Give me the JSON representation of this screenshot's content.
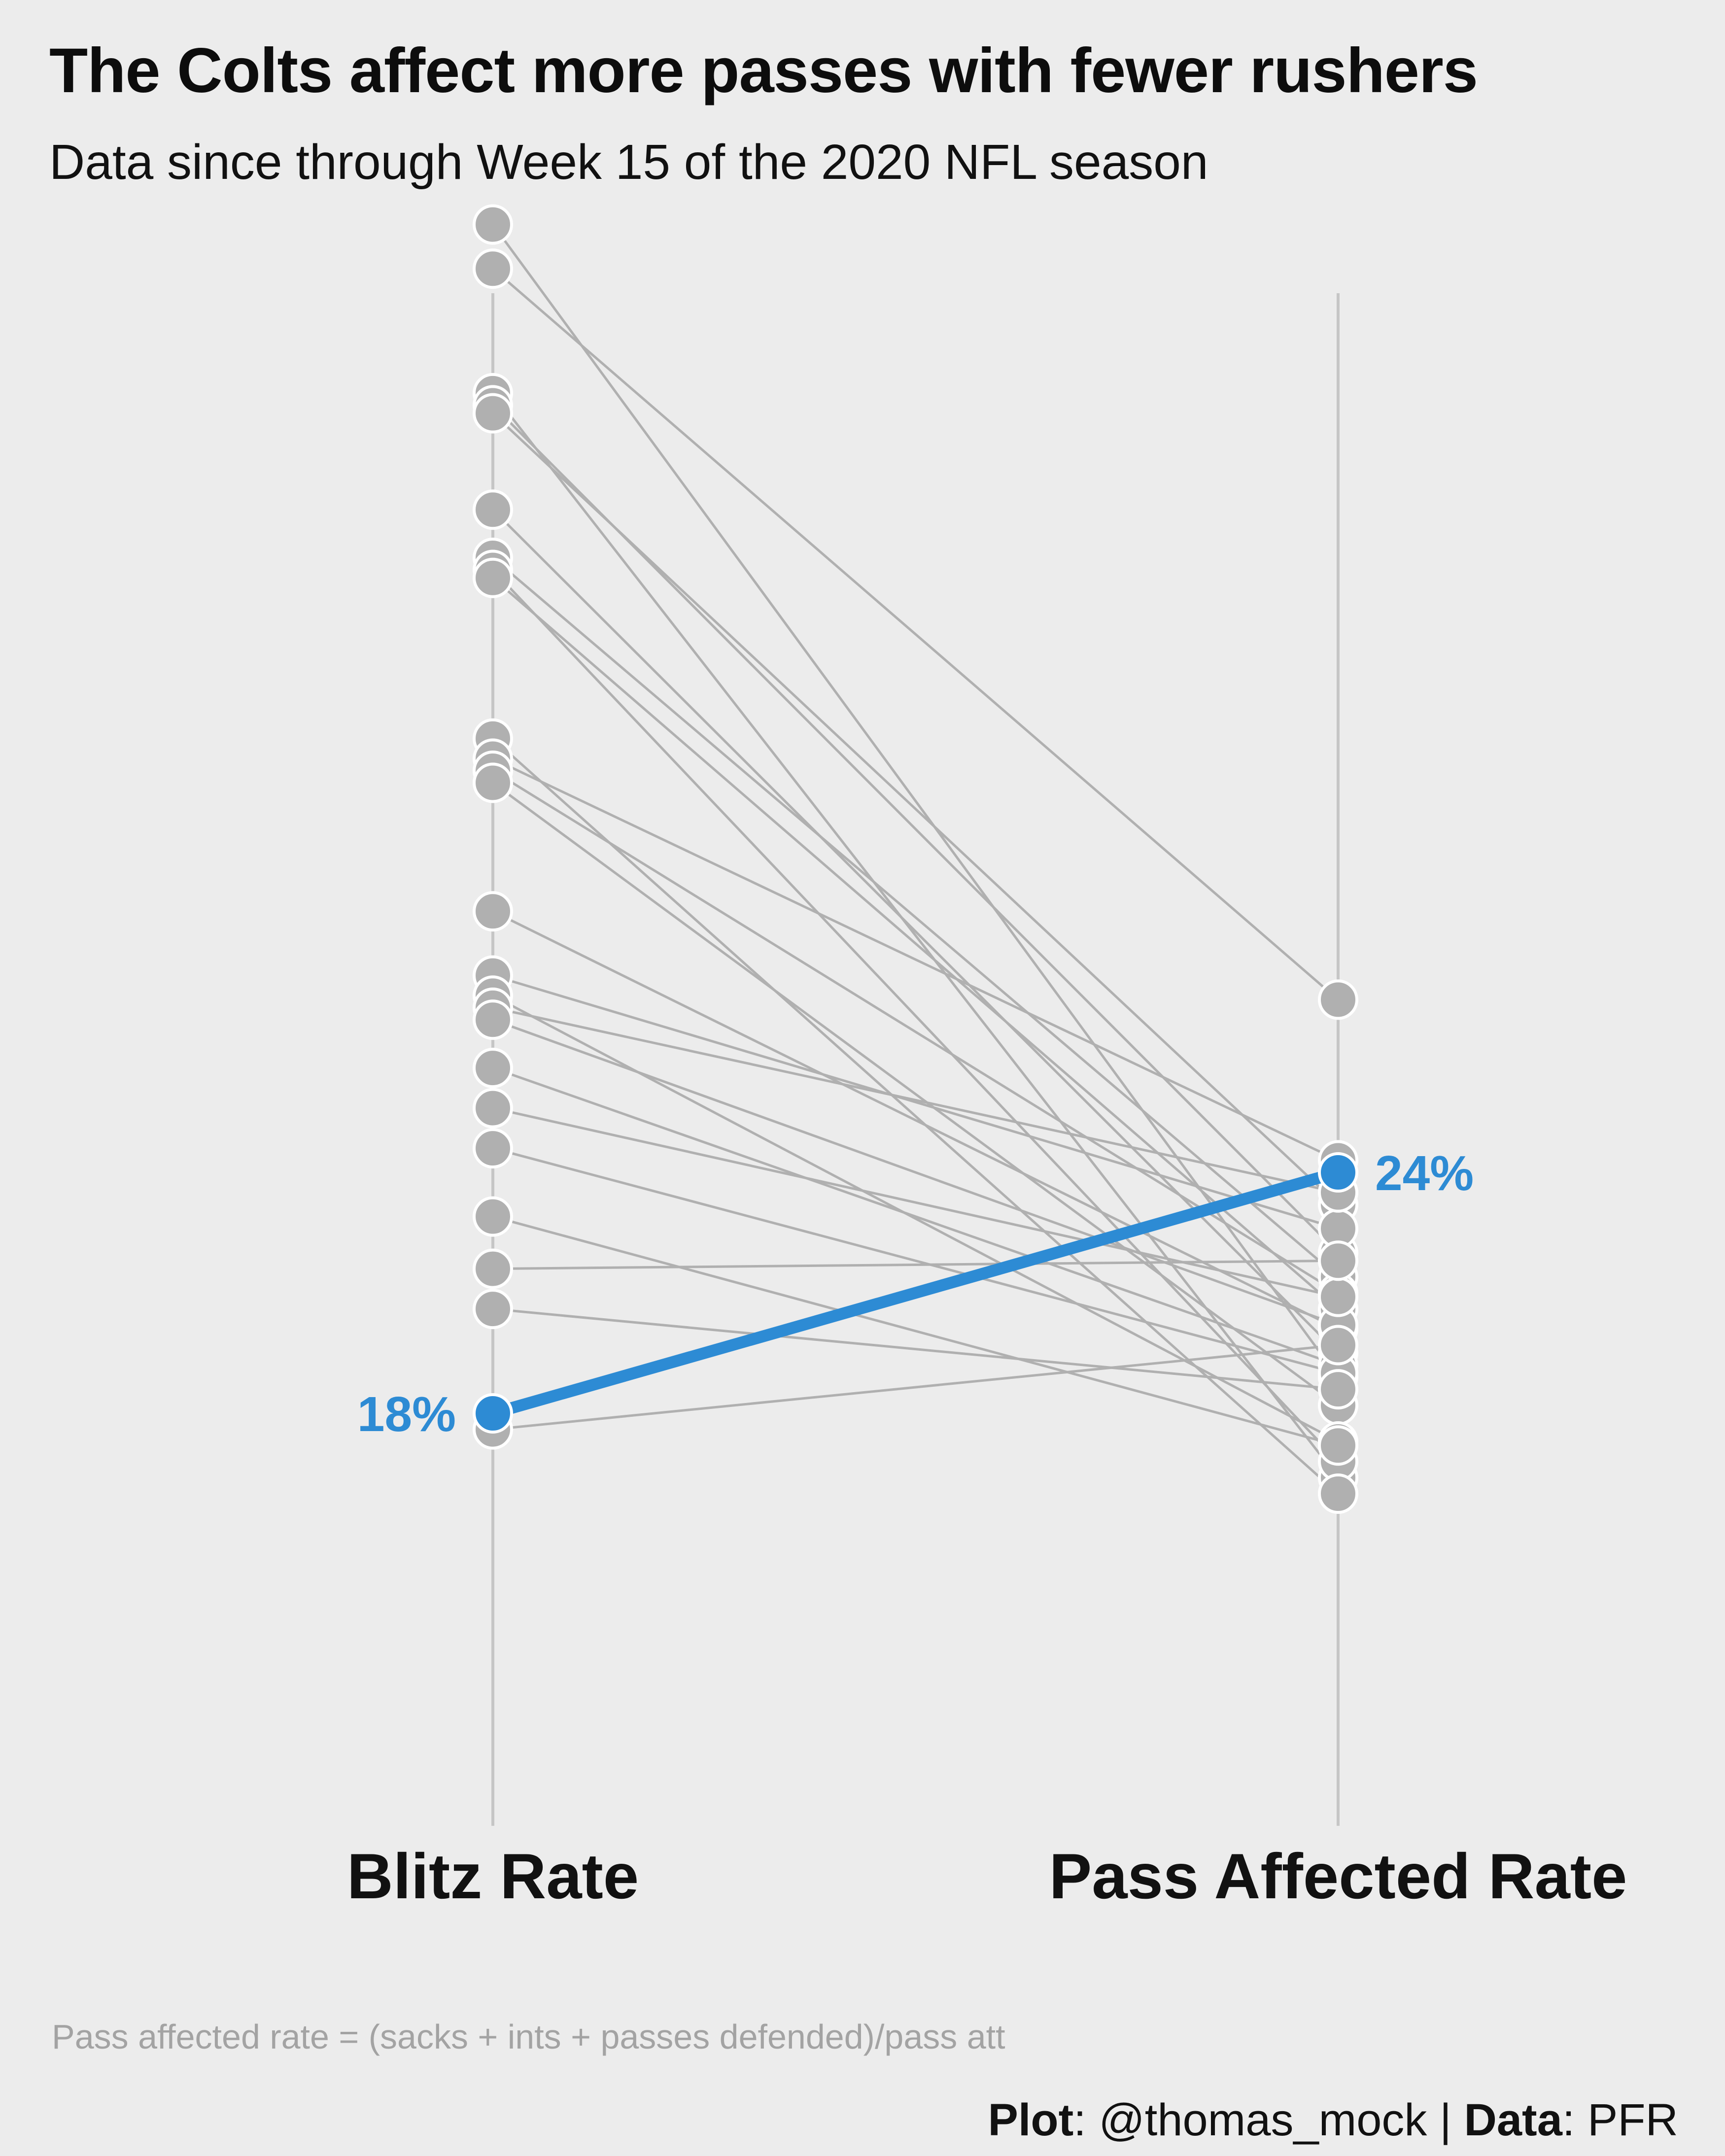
{
  "title": "The Colts affect more passes with fewer rushers",
  "subtitle": "Data since through Week 15 of the 2020 NFL season",
  "caption": "Pass affected rate = (sacks + ints + passes defended)/pass att",
  "credit": {
    "plot_key": "Plot",
    "plot_value": ": @thomas_mock | ",
    "data_key": "Data",
    "data_value": ": PFR"
  },
  "colors": {
    "background": "#ececec",
    "highlight": "#2d8bd4",
    "muted": "#b0b0b0",
    "axis": "#c6c6c6"
  },
  "chart_data": {
    "type": "slope",
    "categories": [
      "Blitz Rate",
      "Pass Affected Rate"
    ],
    "ylim": [
      10,
      50
    ],
    "grid": false,
    "legend": "none",
    "highlight": {
      "blitz_rate": 18,
      "pass_affected_rate": 24,
      "blitz_label": "18%",
      "pass_affected_label": "24%"
    },
    "others": [
      {
        "blitz_rate": 47.6,
        "pass_affected_rate": 18.9
      },
      {
        "blitz_rate": 46.5,
        "pass_affected_rate": 28.3
      },
      {
        "blitz_rate": 43.4,
        "pass_affected_rate": 16.4
      },
      {
        "blitz_rate": 43.1,
        "pass_affected_rate": 22.0
      },
      {
        "blitz_rate": 42.9,
        "pass_affected_rate": 23.2
      },
      {
        "blitz_rate": 40.5,
        "pass_affected_rate": 19.5
      },
      {
        "blitz_rate": 39.3,
        "pass_affected_rate": 21.4
      },
      {
        "blitz_rate": 39.0,
        "pass_affected_rate": 16.8
      },
      {
        "blitz_rate": 38.8,
        "pass_affected_rate": 20.6
      },
      {
        "blitz_rate": 34.8,
        "pass_affected_rate": 16.0
      },
      {
        "blitz_rate": 34.3,
        "pass_affected_rate": 24.3
      },
      {
        "blitz_rate": 34.0,
        "pass_affected_rate": 21.0
      },
      {
        "blitz_rate": 33.7,
        "pass_affected_rate": 18.2
      },
      {
        "blitz_rate": 30.5,
        "pass_affected_rate": 20.1
      },
      {
        "blitz_rate": 28.9,
        "pass_affected_rate": 22.6
      },
      {
        "blitz_rate": 28.4,
        "pass_affected_rate": 17.3
      },
      {
        "blitz_rate": 28.1,
        "pass_affected_rate": 23.5
      },
      {
        "blitz_rate": 27.8,
        "pass_affected_rate": 20.2
      },
      {
        "blitz_rate": 26.6,
        "pass_affected_rate": 19.2
      },
      {
        "blitz_rate": 25.6,
        "pass_affected_rate": 20.9
      },
      {
        "blitz_rate": 24.6,
        "pass_affected_rate": 19.0
      },
      {
        "blitz_rate": 22.9,
        "pass_affected_rate": 17.2
      },
      {
        "blitz_rate": 21.6,
        "pass_affected_rate": 21.8
      },
      {
        "blitz_rate": 20.6,
        "pass_affected_rate": 18.6
      },
      {
        "blitz_rate": 17.6,
        "pass_affected_rate": 19.7
      }
    ]
  }
}
